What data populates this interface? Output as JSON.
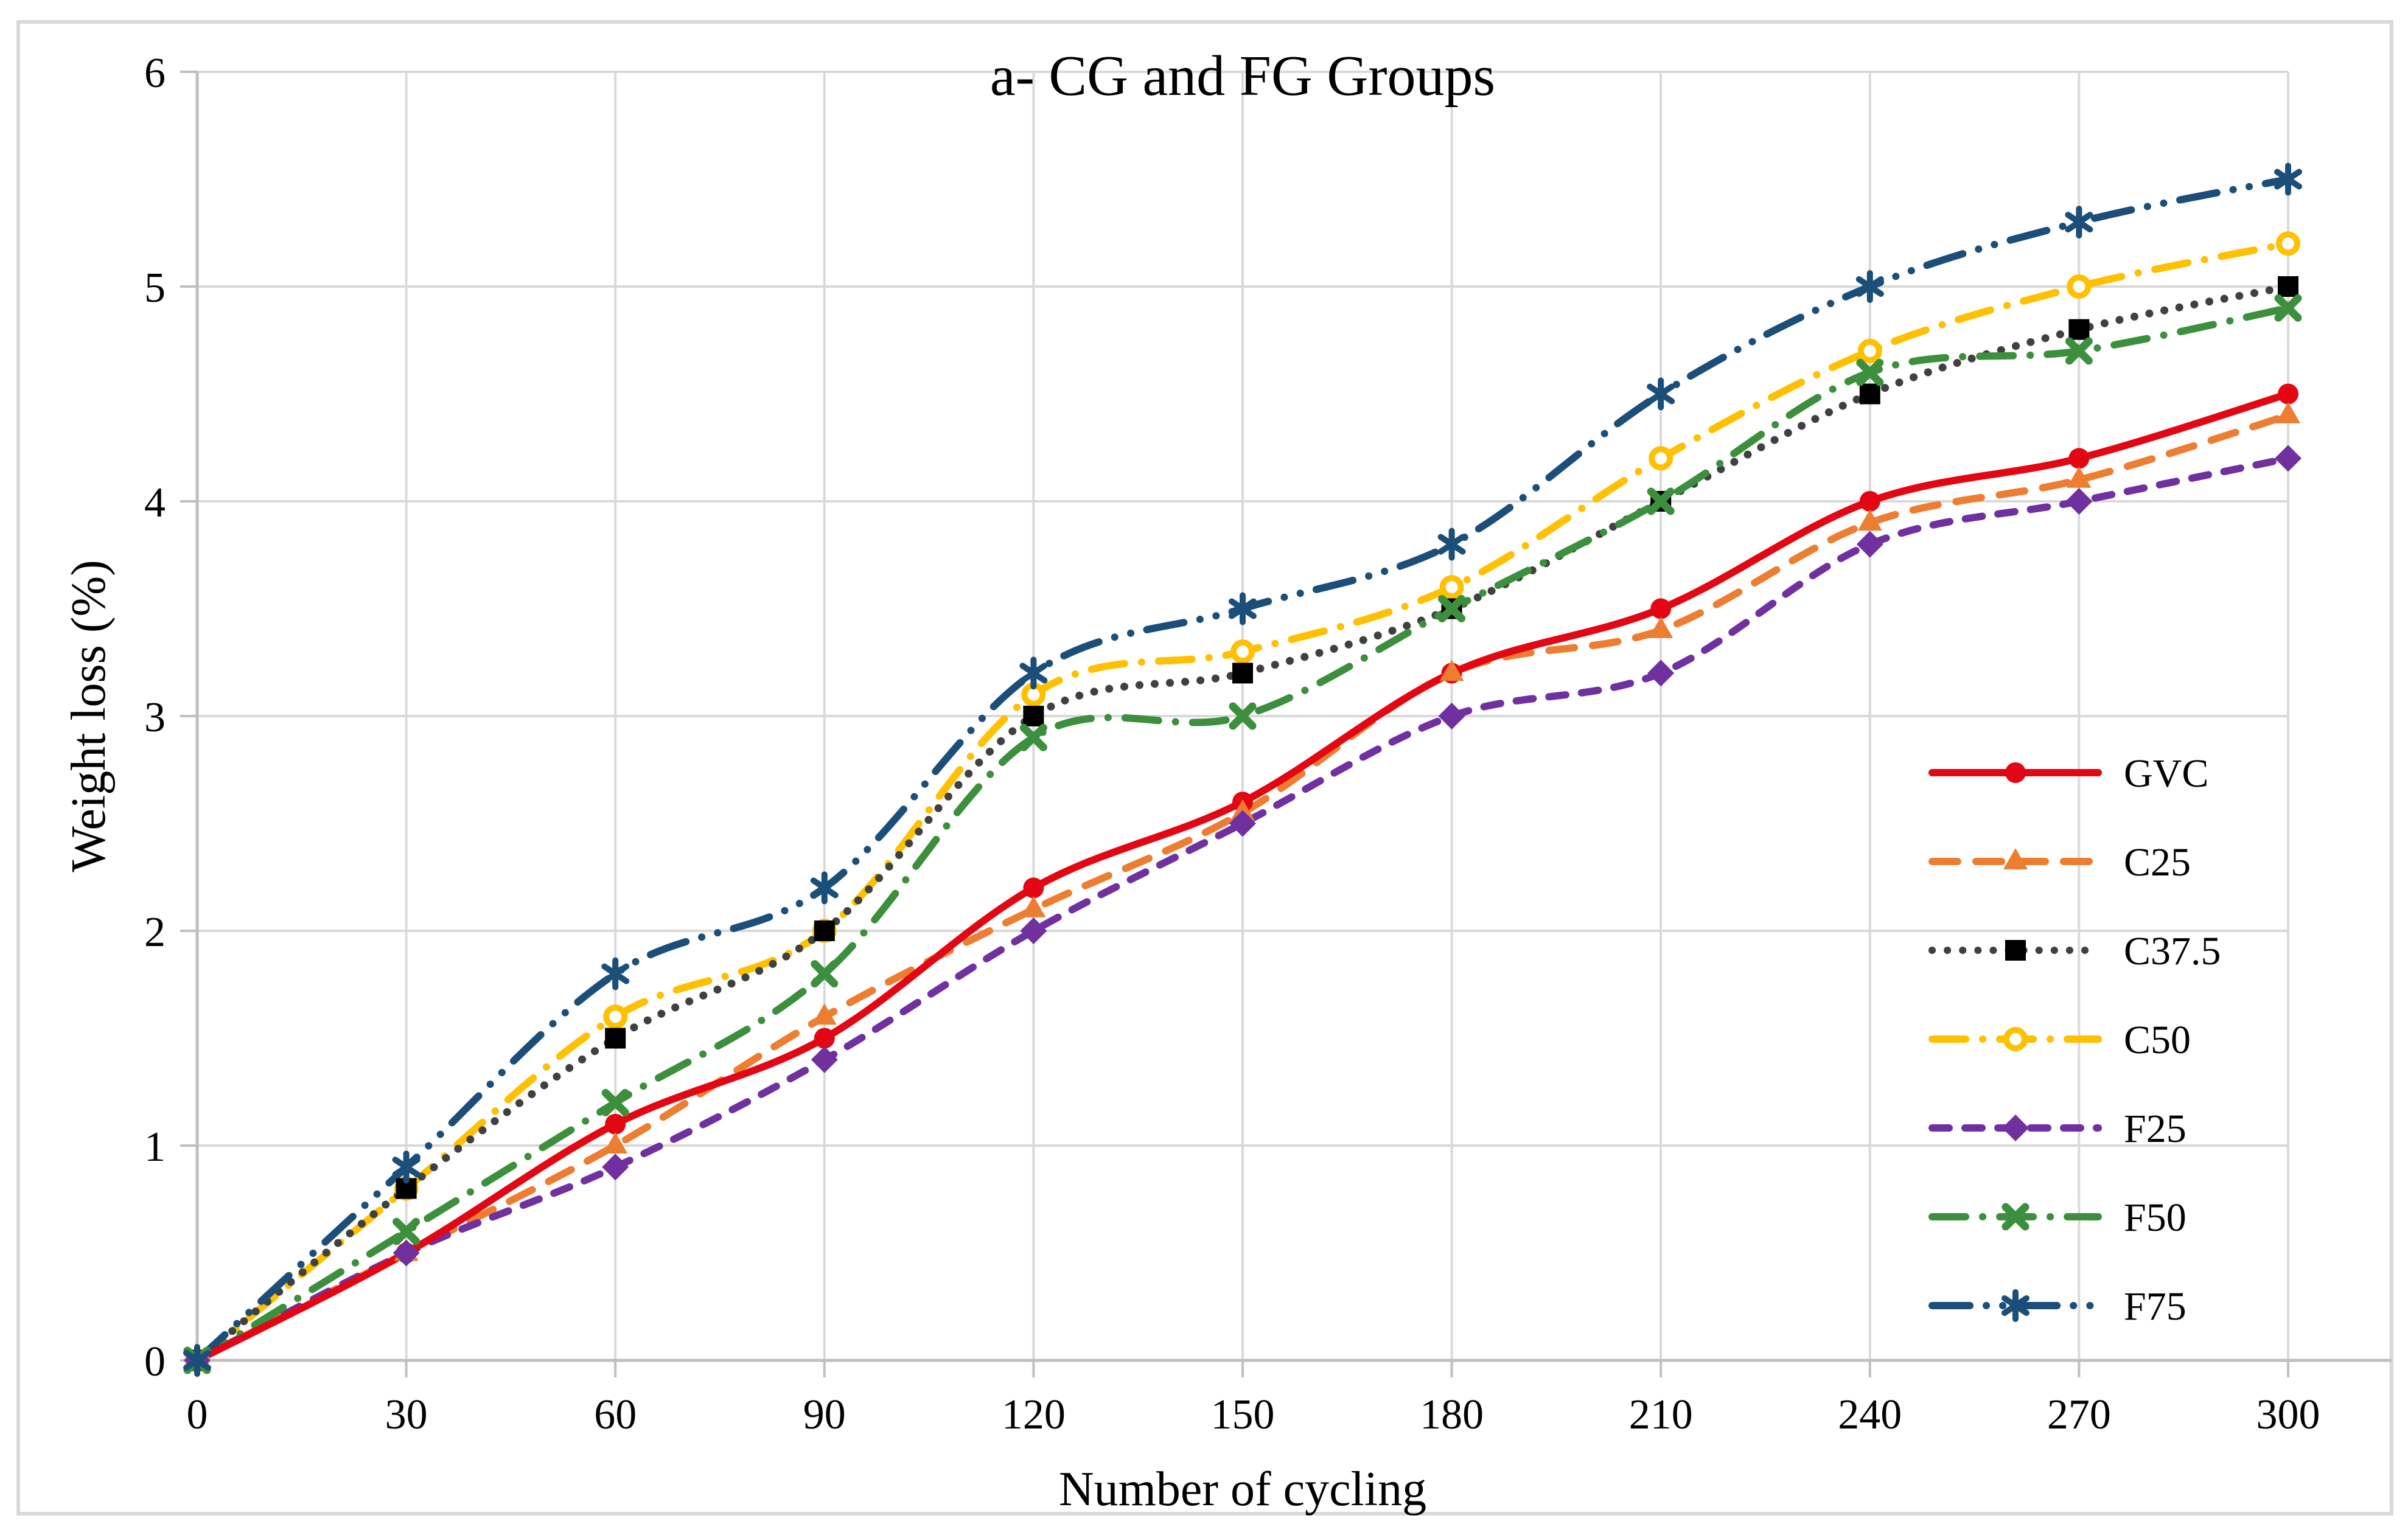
{
  "figure": {
    "title": "a- CG and FG Groups",
    "background": "#ffffff",
    "border_color": "#d9d9d9",
    "gridline_color": "#d9d9d9",
    "axis_color": "#bfbfbf"
  },
  "axes": {
    "x": {
      "title": "Number of cycling",
      "min": 0,
      "max": 300,
      "tick_step": 30
    },
    "y": {
      "title": "Weight loss (%)",
      "min": 0,
      "max": 6,
      "tick_step": 1
    }
  },
  "legend": {
    "position": "right-inside",
    "items": [
      "GVC",
      "C25",
      "C37.5",
      "C50",
      "F25",
      "F50",
      "F75"
    ]
  },
  "chart_data": {
    "type": "line",
    "title": "a- CG and FG Groups",
    "xlabel": "Number of cycling",
    "ylabel": "Weight loss (%)",
    "x": [
      0,
      30,
      60,
      90,
      120,
      150,
      180,
      210,
      240,
      270,
      300
    ],
    "x_ticks": [
      0,
      30,
      60,
      90,
      120,
      150,
      180,
      210,
      240,
      270,
      300
    ],
    "y_ticks": [
      0,
      1,
      2,
      3,
      4,
      5,
      6
    ],
    "xlim": [
      0,
      300
    ],
    "ylim": [
      0,
      6
    ],
    "grid": true,
    "smooth_lines": true,
    "legend_position": "right-inside",
    "series": [
      {
        "name": "GVC",
        "color": "#e30613",
        "marker_color": "#e30613",
        "line_style": "solid",
        "marker": "circle",
        "values": [
          0,
          0.5,
          1.1,
          1.5,
          2.2,
          2.6,
          3.2,
          3.5,
          4.0,
          4.2,
          4.5
        ]
      },
      {
        "name": "C25",
        "color": "#ed7d31",
        "marker_color": "#ed7d31",
        "line_style": "long-dash",
        "marker": "triangle",
        "values": [
          0,
          0.5,
          1.0,
          1.6,
          2.1,
          2.55,
          3.2,
          3.4,
          3.9,
          4.1,
          4.4
        ]
      },
      {
        "name": "C37.5",
        "color": "#404040",
        "marker_color": "#000000",
        "line_style": "dot",
        "marker": "square",
        "values": [
          0,
          0.8,
          1.5,
          2.0,
          3.0,
          3.2,
          3.5,
          4.0,
          4.5,
          4.8,
          5.0
        ]
      },
      {
        "name": "C50",
        "color": "#ffc000",
        "marker_color": "#ffc000",
        "line_style": "dash-dot",
        "marker": "open-circle",
        "values": [
          0,
          0.8,
          1.6,
          2.0,
          3.1,
          3.3,
          3.6,
          4.2,
          4.7,
          5.0,
          5.2
        ]
      },
      {
        "name": "F25",
        "color": "#7030a0",
        "marker_color": "#7030a0",
        "line_style": "dash",
        "marker": "diamond",
        "values": [
          0,
          0.5,
          0.9,
          1.4,
          2.0,
          2.5,
          3.0,
          3.2,
          3.8,
          4.0,
          4.2
        ]
      },
      {
        "name": "F50",
        "color": "#3c8f3c",
        "marker_color": "#3c8f3c",
        "line_style": "dash-dot",
        "marker": "x",
        "values": [
          0,
          0.6,
          1.2,
          1.8,
          2.9,
          3.0,
          3.5,
          4.0,
          4.6,
          4.7,
          4.9
        ]
      },
      {
        "name": "F75",
        "color": "#1b4e79",
        "marker_color": "#1b4e79",
        "line_style": "dash-dot-dot",
        "marker": "asterisk",
        "values": [
          0,
          0.9,
          1.8,
          2.2,
          3.2,
          3.5,
          3.8,
          4.5,
          5.0,
          5.3,
          5.5
        ]
      }
    ]
  }
}
